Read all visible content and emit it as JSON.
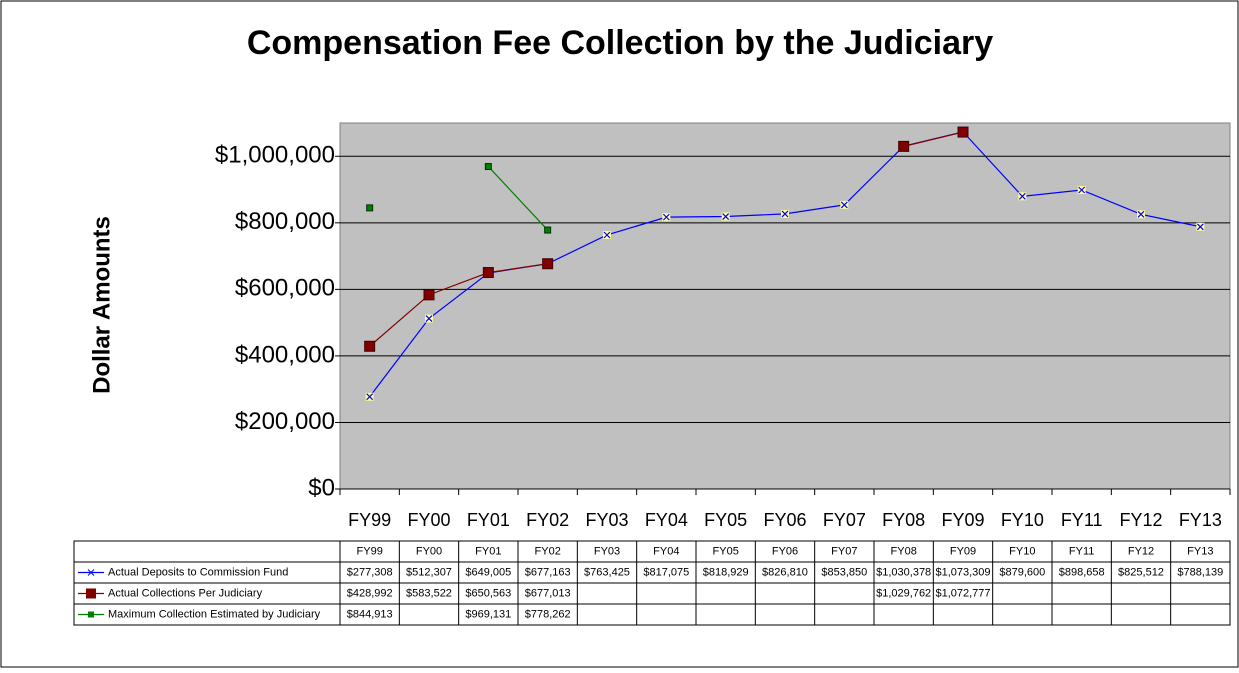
{
  "chart_data": {
    "type": "line",
    "title": "Compensation Fee Collection by the Judiciary",
    "y_label": "Dollar Amounts",
    "categories": [
      "FY99",
      "FY00",
      "FY01",
      "FY02",
      "FY03",
      "FY04",
      "FY05",
      "FY06",
      "FY07",
      "FY08",
      "FY09",
      "FY10",
      "FY11",
      "FY12",
      "FY13"
    ],
    "series": [
      {
        "name": "Actual Deposits to Commission Fund",
        "color": "#0000ff",
        "marker": "x",
        "values": [
          277308,
          512307,
          649005,
          677163,
          763425,
          817075,
          818929,
          826810,
          853850,
          1030378,
          1073309,
          879600,
          898658,
          825512,
          788139
        ],
        "value_labels": [
          "$277,308",
          "$512,307",
          "$649,005",
          "$677,163",
          "$763,425",
          "$817,075",
          "$818,929",
          "$826,810",
          "$853,850",
          "$1,030,378",
          "$1,073,309",
          "$879,600",
          "$898,658",
          "$825,512",
          "$788,139"
        ]
      },
      {
        "name": "Actual Collections Per Judiciary",
        "color": "#800000",
        "marker": "square",
        "values": [
          428992,
          583522,
          650563,
          677013,
          null,
          null,
          null,
          null,
          null,
          1029762,
          1072777,
          null,
          null,
          null,
          null
        ],
        "value_labels": [
          "$428,992",
          "$583,522",
          "$650,563",
          "$677,013",
          null,
          null,
          null,
          null,
          null,
          "$1,029,762",
          "$1,072,777",
          null,
          null,
          null,
          null
        ]
      },
      {
        "name": "Maximum Collection Estimated by Judiciary",
        "color": "#008000",
        "marker": "small-square",
        "values": [
          844913,
          null,
          969131,
          778262,
          null,
          null,
          null,
          null,
          null,
          null,
          null,
          null,
          null,
          null,
          null
        ],
        "value_labels": [
          "$844,913",
          null,
          "$969,131",
          "$778,262",
          null,
          null,
          null,
          null,
          null,
          null,
          null,
          null,
          null,
          null,
          null
        ]
      }
    ],
    "ylim": [
      0,
      1100000
    ],
    "yticks": [
      {
        "value": 0,
        "label": "$0"
      },
      {
        "value": 200000,
        "label": "$200,000"
      },
      {
        "value": 400000,
        "label": "$400,000"
      },
      {
        "value": 600000,
        "label": "$600,000"
      },
      {
        "value": 800000,
        "label": "$800,000"
      },
      {
        "value": 1000000,
        "label": "$1,000,000"
      }
    ],
    "grid": true
  }
}
